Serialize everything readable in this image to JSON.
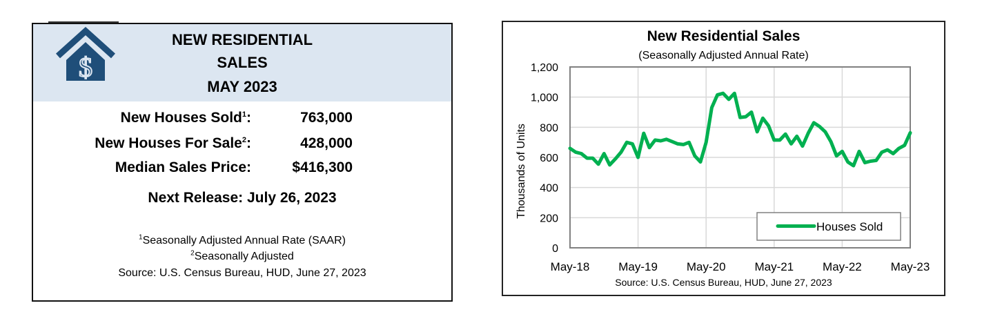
{
  "summary_card": {
    "title_lines": [
      "NEW RESIDENTIAL",
      "SALES",
      "MAY 2023"
    ],
    "icon": "house-dollar-icon",
    "stats": [
      {
        "label": "New Houses Sold",
        "footnote": "1",
        "value": "763,000"
      },
      {
        "label": "New Houses For Sale",
        "footnote": "2",
        "value": "428,000"
      },
      {
        "label": "Median Sales Price",
        "footnote": "",
        "value": "$416,300"
      }
    ],
    "colon": ":",
    "next_release": "Next Release:  July 26, 2023",
    "footnotes": [
      {
        "mark": "1",
        "text": "Seasonally Adjusted Annual Rate (SAAR)"
      },
      {
        "mark": "2",
        "text": "Seasonally Adjusted"
      }
    ],
    "source": "Source:  U.S. Census Bureau, HUD, June 27, 2023"
  },
  "colors": {
    "header_band": "#dce6f1",
    "icon_blue": "#1f4e79",
    "line_green": "#00b050",
    "grid": "#d9d9d9",
    "axis": "#808080"
  },
  "chart_data": {
    "type": "line",
    "title": "New Residential Sales",
    "subtitle": "(Seasonally Adjusted Annual Rate)",
    "xlabel": "",
    "ylabel": "Thousands of Units",
    "ylim": [
      0,
      1200
    ],
    "yticks": [
      "0",
      "200",
      "400",
      "600",
      "800",
      "1,000",
      "1,200"
    ],
    "ytick_values": [
      0,
      200,
      400,
      600,
      800,
      1000,
      1200
    ],
    "xtick_labels": [
      "May-18",
      "May-19",
      "May-20",
      "May-21",
      "May-22",
      "May-23"
    ],
    "grid": true,
    "legend_position": "lower right",
    "source": "Source:  U.S. Census Bureau, HUD, June 27, 2023",
    "x_start": "May-18",
    "x_end": "May-23",
    "frequency": "monthly",
    "series": [
      {
        "name": "Houses Sold",
        "color": "#00b050",
        "values": [
          660,
          635,
          625,
          595,
          595,
          555,
          625,
          550,
          590,
          635,
          700,
          690,
          600,
          760,
          665,
          715,
          710,
          720,
          705,
          690,
          685,
          700,
          610,
          570,
          700,
          930,
          1015,
          1025,
          985,
          1025,
          865,
          870,
          900,
          770,
          860,
          810,
          715,
          715,
          755,
          690,
          740,
          675,
          760,
          830,
          805,
          770,
          705,
          610,
          640,
          570,
          545,
          640,
          565,
          575,
          580,
          635,
          650,
          625,
          660,
          680,
          763
        ]
      }
    ]
  }
}
